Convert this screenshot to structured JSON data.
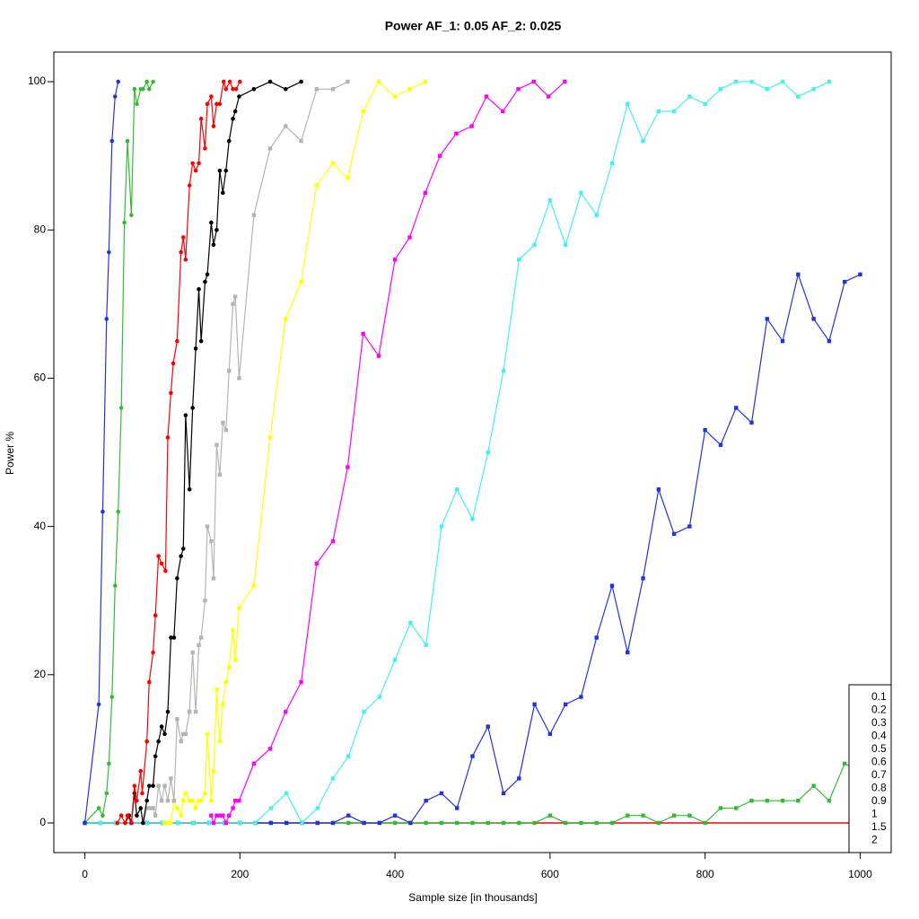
{
  "chart_data": {
    "type": "line",
    "title": "Power    AF_1: 0.05     AF_2: 0.025",
    "x_label": "Sample size [in thousands]",
    "y_label": "Power %",
    "xlim": [
      -40,
      1040
    ],
    "ylim": [
      -4,
      104
    ],
    "xticks": [
      0,
      200,
      400,
      600,
      800,
      1000
    ],
    "yticks": [
      0,
      20,
      40,
      60,
      80,
      100
    ],
    "legend_position": "bottom-right",
    "series": [
      {
        "name": "0.1",
        "color": "#000000",
        "marker": "square",
        "x": [
          0,
          1000
        ],
        "values": [
          0,
          0
        ]
      },
      {
        "name": "0.2",
        "color": "#ff0000",
        "marker": "square",
        "x": [
          0,
          1000
        ],
        "values": [
          0,
          0
        ]
      },
      {
        "name": "0.3",
        "color": "#33bb33",
        "marker": "square",
        "x": [
          0,
          20,
          40,
          60,
          80,
          100,
          120,
          140,
          160,
          180,
          200,
          220,
          240,
          260,
          280,
          300,
          320,
          340,
          360,
          380,
          400,
          420,
          440,
          460,
          480,
          500,
          520,
          540,
          560,
          580,
          600,
          620,
          640,
          660,
          680,
          700,
          720,
          740,
          760,
          780,
          800,
          820,
          840,
          860,
          880,
          900,
          920,
          940,
          960,
          980,
          1000
        ],
        "values": [
          0,
          0,
          0,
          0,
          0,
          0,
          0,
          0,
          0,
          0,
          0,
          0,
          0,
          0,
          0,
          0,
          0,
          0,
          0,
          0,
          0,
          0,
          0,
          0,
          0,
          0,
          0,
          0,
          0,
          0,
          1,
          0,
          0,
          0,
          0,
          1,
          1,
          0,
          1,
          1,
          0,
          2,
          2,
          3,
          3,
          3,
          3,
          5,
          3,
          8,
          7
        ]
      },
      {
        "name": "0.4",
        "color": "#2233dd",
        "marker": "square",
        "x": [
          0,
          20,
          40,
          60,
          80,
          100,
          120,
          140,
          160,
          180,
          200,
          220,
          240,
          260,
          280,
          300,
          320,
          340,
          360,
          380,
          400,
          420,
          440,
          460,
          480,
          500,
          520,
          540,
          560,
          580,
          600,
          620,
          640,
          660,
          680,
          700,
          720,
          740,
          760,
          780,
          800,
          820,
          840,
          860,
          880,
          900,
          920,
          940,
          960,
          980,
          1000
        ],
        "values": [
          0,
          0,
          0,
          0,
          0,
          0,
          0,
          0,
          0,
          0,
          0,
          0,
          0,
          0,
          0,
          0,
          0,
          1,
          0,
          0,
          1,
          0,
          3,
          4,
          2,
          9,
          13,
          4,
          6,
          16,
          12,
          16,
          17,
          25,
          32,
          23,
          33,
          45,
          39,
          40,
          53,
          51,
          56,
          54,
          68,
          65,
          74,
          68,
          65,
          73,
          74
        ]
      },
      {
        "name": "0.5",
        "color": "#44f0f0",
        "marker": "square",
        "x": [
          0,
          20,
          40,
          60,
          80,
          100,
          120,
          140,
          160,
          180,
          200,
          220,
          240,
          260,
          280,
          300,
          320,
          340,
          360,
          380,
          400,
          420,
          440,
          460,
          480,
          500,
          520,
          540,
          560,
          580,
          600,
          620,
          640,
          660,
          680,
          700,
          720,
          740,
          760,
          780,
          800,
          820,
          840,
          860,
          880,
          900,
          920,
          940,
          960
        ],
        "values": [
          0,
          0,
          0,
          0,
          0,
          0,
          0,
          0,
          0,
          0,
          0,
          0,
          2,
          4,
          0,
          2,
          6,
          9,
          15,
          17,
          22,
          27,
          24,
          40,
          45,
          41,
          50,
          61,
          76,
          78,
          84,
          78,
          85,
          82,
          89,
          97,
          92,
          96,
          96,
          98,
          97,
          99,
          100,
          100,
          99,
          100,
          98,
          99,
          100
        ]
      },
      {
        "name": "0.6",
        "color": "#ff00ff",
        "marker": "square",
        "x": [
          163,
          166,
          170,
          174,
          178,
          182,
          186,
          191,
          194,
          199,
          218,
          239,
          259,
          279,
          299,
          320,
          339,
          359,
          379,
          400,
          419,
          439,
          458,
          479,
          499,
          518,
          539,
          559,
          579,
          598,
          619
        ],
        "values": [
          1,
          0,
          1,
          1,
          1,
          0,
          1,
          2,
          3,
          3,
          8,
          10,
          15,
          19,
          35,
          38,
          48,
          66,
          63,
          76,
          79,
          85,
          90,
          93,
          94,
          98,
          96,
          99,
          100,
          98,
          100
        ]
      },
      {
        "name": "0.7",
        "color": "#ffff00",
        "marker": "square",
        "x": [
          103,
          107,
          111,
          115,
          119,
          124,
          127,
          130,
          135,
          139,
          143,
          147,
          150,
          155,
          158,
          163,
          166,
          170,
          174,
          178,
          182,
          186,
          191,
          194,
          199,
          218,
          239,
          259,
          279,
          299,
          320,
          339,
          359,
          379,
          400,
          419,
          439
        ],
        "values": [
          0,
          0,
          0,
          3,
          2,
          1,
          3,
          4,
          3,
          3,
          2,
          3,
          3,
          4,
          12,
          3,
          7,
          18,
          11,
          16,
          19,
          21,
          26,
          22,
          29,
          32,
          52,
          68,
          73,
          86,
          89,
          87,
          96,
          100,
          98,
          99,
          100
        ]
      },
      {
        "name": "0.8",
        "color": "#b4b4b4",
        "marker": "square",
        "x": [
          76,
          80,
          83,
          88,
          91,
          95,
          99,
          103,
          107,
          111,
          115,
          119,
          124,
          127,
          130,
          135,
          139,
          143,
          147,
          150,
          155,
          158,
          163,
          166,
          170,
          174,
          178,
          182,
          186,
          191,
          194,
          199,
          218,
          239,
          259,
          279,
          299,
          320,
          339
        ],
        "values": [
          0,
          2,
          2,
          2,
          1,
          5,
          3,
          5,
          3,
          6,
          3,
          14,
          11,
          12,
          12,
          15,
          23,
          15,
          24,
          25,
          30,
          40,
          38,
          33,
          51,
          47,
          54,
          53,
          61,
          70,
          71,
          60,
          82,
          91,
          94,
          92,
          99,
          99,
          100
        ]
      },
      {
        "name": "0.9",
        "color": "#000000",
        "marker": "circle",
        "x": [
          52,
          57,
          60,
          64,
          67,
          72,
          75,
          80,
          83,
          88,
          91,
          95,
          99,
          103,
          107,
          111,
          115,
          119,
          124,
          127,
          130,
          135,
          139,
          143,
          147,
          150,
          155,
          158,
          163,
          166,
          170,
          174,
          178,
          182,
          186,
          191,
          194,
          199,
          218,
          239,
          259,
          279
        ],
        "values": [
          0,
          1,
          0,
          4,
          1,
          2,
          0,
          3,
          5,
          5,
          9,
          11,
          13,
          12,
          15,
          25,
          25,
          33,
          36,
          37,
          55,
          45,
          56,
          64,
          72,
          65,
          73,
          74,
          81,
          78,
          80,
          88,
          85,
          88,
          92,
          95,
          96,
          98,
          99,
          100,
          99,
          100
        ]
      },
      {
        "name": "1",
        "color": "#ff0000",
        "marker": "circle",
        "x": [
          42,
          47,
          52,
          55,
          60,
          64,
          67,
          72,
          74,
          80,
          83,
          88,
          91,
          95,
          99,
          104,
          107,
          111,
          114,
          119,
          124,
          127,
          130,
          135,
          139,
          143,
          147,
          150,
          155,
          158,
          163,
          166,
          170,
          174,
          179,
          182,
          187,
          191,
          195,
          200
        ],
        "values": [
          0,
          1,
          0,
          1,
          0,
          5,
          3,
          7,
          4,
          11,
          19,
          23,
          28,
          36,
          35,
          34,
          52,
          58,
          62,
          65,
          77,
          79,
          76,
          86,
          89,
          88,
          89,
          95,
          91,
          97,
          98,
          94,
          97,
          97,
          100,
          99,
          100,
          99,
          99,
          100
        ]
      },
      {
        "name": "1.5",
        "color": "#33bb33",
        "marker": "circle",
        "x": [
          0,
          18,
          23,
          28,
          31,
          35,
          39,
          43,
          47,
          51,
          55,
          60,
          64,
          67,
          72,
          75,
          80,
          83,
          88
        ],
        "values": [
          0,
          2,
          1,
          4,
          8,
          17,
          32,
          42,
          56,
          81,
          92,
          82,
          99,
          97,
          99,
          99,
          100,
          99,
          100
        ]
      },
      {
        "name": "2",
        "color": "#2233dd",
        "marker": "circle",
        "x": [
          0,
          18,
          23,
          28,
          31,
          35,
          39,
          43
        ],
        "values": [
          0,
          16,
          42,
          68,
          77,
          92,
          98,
          100
        ]
      }
    ]
  }
}
